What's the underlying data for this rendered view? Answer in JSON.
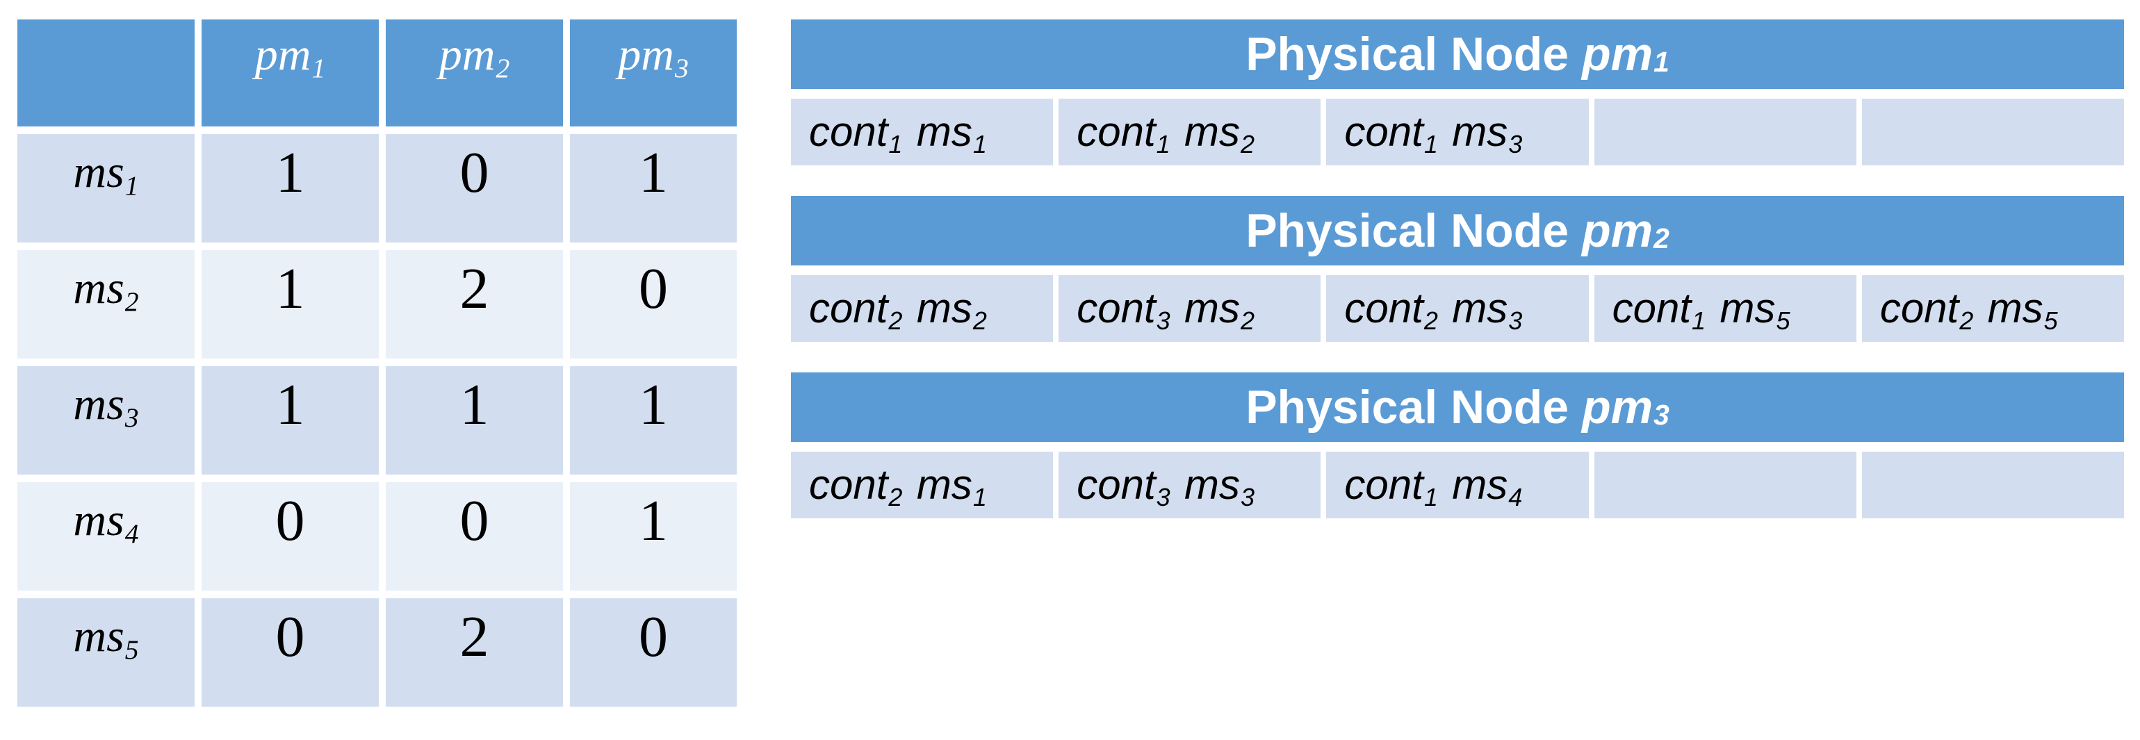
{
  "colors": {
    "header-blue": "#5b9bd5",
    "band-dark": "#d2deef",
    "band-light": "#eaf0f8",
    "cell-blue": "#d2deef",
    "text-light": "#ffffff",
    "text-dark": "#000000"
  },
  "matrix_table": {
    "corner_label": "",
    "columns": [
      {
        "base": "pm",
        "sub": "1"
      },
      {
        "base": "pm",
        "sub": "2"
      },
      {
        "base": "pm",
        "sub": "3"
      }
    ],
    "rows": [
      {
        "label": {
          "base": "ms",
          "sub": "1"
        },
        "values": [
          "1",
          "0",
          "1"
        ]
      },
      {
        "label": {
          "base": "ms",
          "sub": "2"
        },
        "values": [
          "1",
          "2",
          "0"
        ]
      },
      {
        "label": {
          "base": "ms",
          "sub": "3"
        },
        "values": [
          "1",
          "1",
          "1"
        ]
      },
      {
        "label": {
          "base": "ms",
          "sub": "4"
        },
        "values": [
          "0",
          "0",
          "1"
        ]
      },
      {
        "label": {
          "base": "ms",
          "sub": "5"
        },
        "values": [
          "0",
          "2",
          "0"
        ]
      }
    ]
  },
  "node_tables": [
    {
      "title_prefix": "Physical Node",
      "title_base": "pm",
      "title_sub": "1",
      "cells": [
        {
          "c": "cont",
          "ci": "1",
          "m": "ms",
          "mi": "1"
        },
        {
          "c": "cont",
          "ci": "1",
          "m": "ms",
          "mi": "2"
        },
        {
          "c": "cont",
          "ci": "1",
          "m": "ms",
          "mi": "3"
        },
        {
          "c": "",
          "ci": "",
          "m": "",
          "mi": ""
        },
        {
          "c": "",
          "ci": "",
          "m": "",
          "mi": ""
        }
      ]
    },
    {
      "title_prefix": "Physical Node",
      "title_base": "pm",
      "title_sub": "2",
      "cells": [
        {
          "c": "cont",
          "ci": "2",
          "m": "ms",
          "mi": "2"
        },
        {
          "c": "cont",
          "ci": "3",
          "m": "ms",
          "mi": "2"
        },
        {
          "c": "cont",
          "ci": "2",
          "m": "ms",
          "mi": "3"
        },
        {
          "c": "cont",
          "ci": "1",
          "m": "ms",
          "mi": "5"
        },
        {
          "c": "cont",
          "ci": "2",
          "m": "ms",
          "mi": "5"
        }
      ]
    },
    {
      "title_prefix": "Physical Node",
      "title_base": "pm",
      "title_sub": "3",
      "cells": [
        {
          "c": "cont",
          "ci": "2",
          "m": "ms",
          "mi": "1"
        },
        {
          "c": "cont",
          "ci": "3",
          "m": "ms",
          "mi": "3"
        },
        {
          "c": "cont",
          "ci": "1",
          "m": "ms",
          "mi": "4"
        },
        {
          "c": "",
          "ci": "",
          "m": "",
          "mi": ""
        },
        {
          "c": "",
          "ci": "",
          "m": "",
          "mi": ""
        }
      ]
    }
  ]
}
